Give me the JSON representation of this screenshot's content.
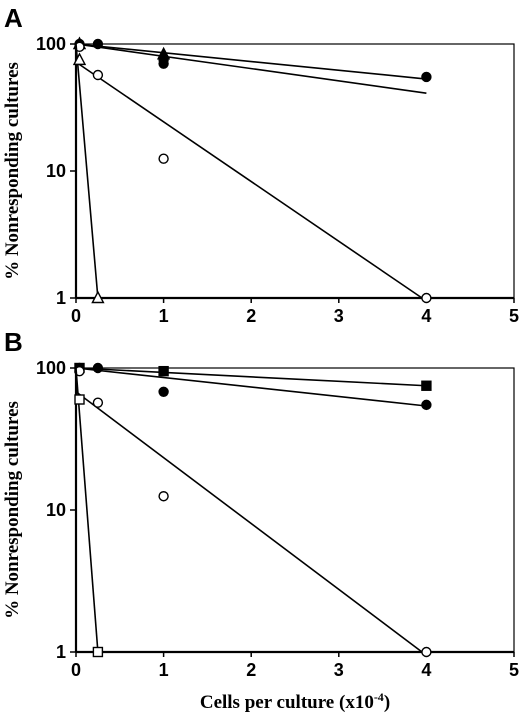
{
  "chart_data": [
    {
      "type": "scatter",
      "panel_label": "A",
      "ylabel": "% Nonresponding cultures",
      "xlabel": "",
      "x_ticks": [
        "0",
        "1",
        "2",
        "3",
        "4",
        "5"
      ],
      "y_ticks": [
        "1",
        "10",
        "100"
      ],
      "xlim": [
        0,
        5
      ],
      "ylim": [
        1,
        100
      ],
      "y_scale": "log",
      "grid": false,
      "series": [
        {
          "marker": "filled-circle",
          "x": [
            0.04,
            0.25,
            1.0,
            1.0,
            4.0
          ],
          "y": [
            100,
            100,
            75,
            70,
            55
          ],
          "fit": [
            [
              0,
              100
            ],
            [
              4.0,
              53
            ]
          ]
        },
        {
          "marker": "filled-triangle",
          "x": [
            0.04,
            1.0
          ],
          "y": [
            100,
            83
          ],
          "fit": [
            [
              0,
              100
            ],
            [
              4.0,
              41
            ]
          ]
        },
        {
          "marker": "open-circle",
          "x": [
            0.04,
            0.25,
            1.0,
            4.0
          ],
          "y": [
            95,
            57,
            12.5,
            1
          ],
          "fit": [
            [
              0,
              72
            ],
            [
              3.95,
              1
            ]
          ]
        },
        {
          "marker": "open-triangle",
          "x": [
            0.04,
            0.25
          ],
          "y": [
            75,
            1
          ],
          "fit": [
            [
              0,
              100
            ],
            [
              0.25,
              1
            ]
          ]
        }
      ]
    },
    {
      "type": "scatter",
      "panel_label": "B",
      "ylabel": "% Nonresponding cultures",
      "xlabel": "Cells per culture (x10",
      "xlabel_sup": "-4",
      "xlabel_end": ")",
      "x_ticks": [
        "0",
        "1",
        "2",
        "3",
        "4",
        "5"
      ],
      "y_ticks": [
        "1",
        "10",
        "100"
      ],
      "xlim": [
        0,
        5
      ],
      "ylim": [
        1,
        100
      ],
      "y_scale": "log",
      "grid": false,
      "series": [
        {
          "marker": "filled-square",
          "x": [
            0.04,
            1.0,
            4.0
          ],
          "y": [
            100,
            95,
            75
          ],
          "fit": [
            [
              0,
              100
            ],
            [
              4.0,
              75
            ]
          ]
        },
        {
          "marker": "filled-circle",
          "x": [
            0.04,
            0.25,
            1.0,
            4.0
          ],
          "y": [
            100,
            100,
            68,
            55
          ],
          "fit": [
            [
              0,
              100
            ],
            [
              4.0,
              54
            ]
          ]
        },
        {
          "marker": "open-circle",
          "x": [
            0.04,
            0.25,
            1.0,
            4.0
          ],
          "y": [
            95,
            57,
            12.5,
            1
          ],
          "fit": [
            [
              0,
              68
            ],
            [
              3.95,
              1
            ]
          ]
        },
        {
          "marker": "open-square",
          "x": [
            0.04,
            0.25
          ],
          "y": [
            60,
            1
          ],
          "fit": [
            [
              0,
              100
            ],
            [
              0.25,
              1
            ]
          ]
        }
      ]
    }
  ]
}
